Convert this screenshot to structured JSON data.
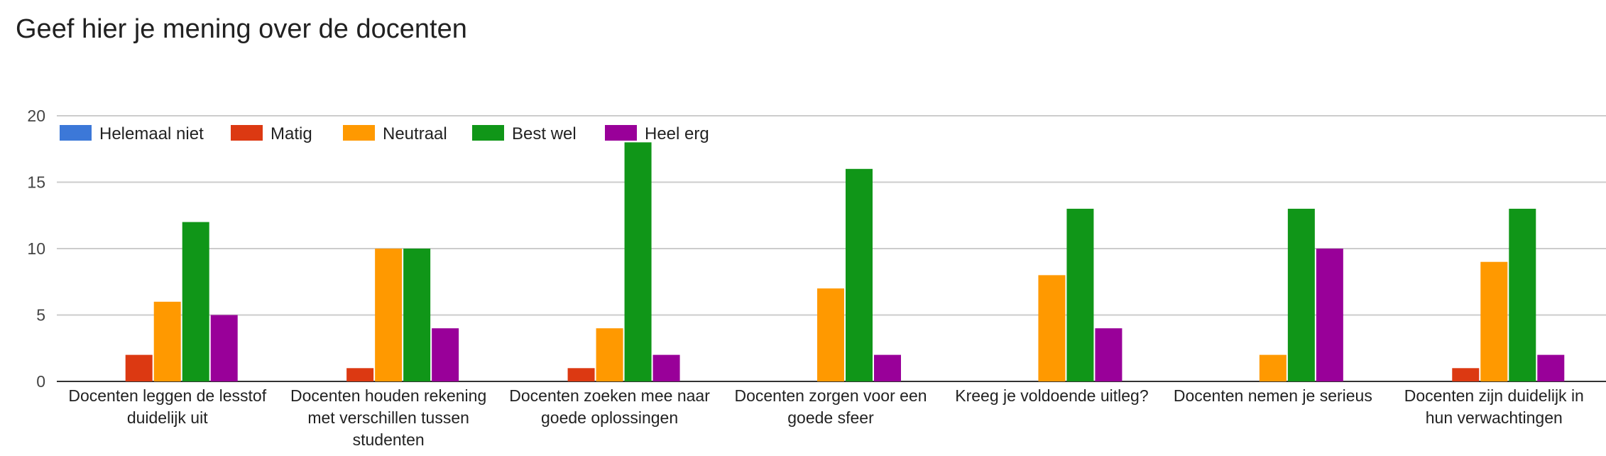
{
  "title": "Geef hier je mening over de docenten",
  "chart_data": {
    "type": "bar",
    "title": "Geef hier je mening over de docenten",
    "xlabel": "",
    "ylabel": "",
    "ylim": [
      0,
      20
    ],
    "yticks": [
      0,
      5,
      10,
      15,
      20
    ],
    "legend_position": "top-left",
    "grid": true,
    "categories": [
      [
        "Docenten leggen de lesstof",
        "duidelijk uit"
      ],
      [
        "Docenten houden rekening",
        "met verschillen tussen",
        "studenten"
      ],
      [
        "Docenten zoeken mee naar",
        "goede oplossingen"
      ],
      [
        "Docenten zorgen voor een",
        "goede sfeer"
      ],
      [
        "Kreeg je voldoende uitleg?"
      ],
      [
        "Docenten nemen je serieus"
      ],
      [
        "Docenten zijn duidelijk in",
        "hun verwachtingen"
      ]
    ],
    "series": [
      {
        "name": "Helemaal niet",
        "color": "#3c78d8",
        "values": [
          0,
          0,
          0,
          0,
          0,
          0,
          0
        ]
      },
      {
        "name": "Matig",
        "color": "#dc3912",
        "values": [
          2,
          1,
          1,
          0,
          0,
          0,
          1
        ]
      },
      {
        "name": "Neutraal",
        "color": "#ff9900",
        "values": [
          6,
          10,
          4,
          7,
          8,
          2,
          9
        ]
      },
      {
        "name": "Best wel",
        "color": "#109618",
        "values": [
          12,
          10,
          18,
          16,
          13,
          13,
          13
        ]
      },
      {
        "name": "Heel erg",
        "color": "#990099",
        "values": [
          5,
          4,
          2,
          2,
          4,
          10,
          2
        ]
      }
    ]
  }
}
